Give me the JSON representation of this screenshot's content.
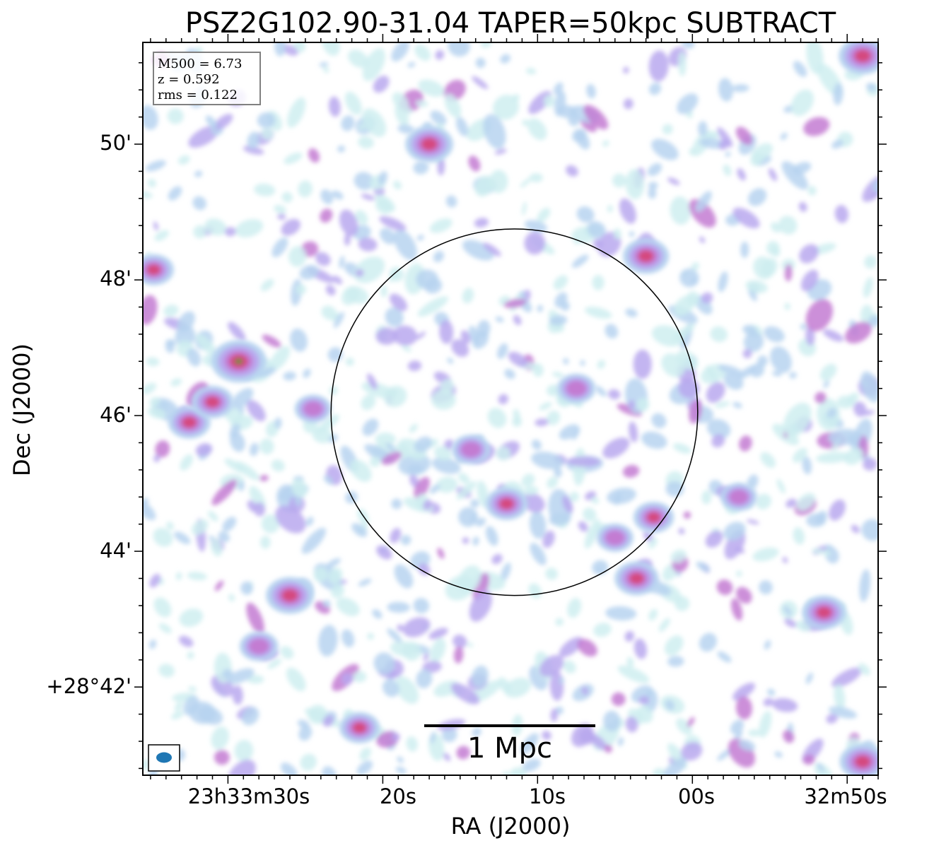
{
  "chart_data": {
    "type": "heatmap",
    "title": "PSZ2G102.90-31.04 TAPER=50kpc SUBTRACT",
    "xlabel": "RA (J2000)",
    "ylabel": "Dec (J2000)",
    "x_ticks": [
      {
        "label": "23h33m30s",
        "ra_s": 30
      },
      {
        "label": "20s",
        "ra_s": 20
      },
      {
        "label": "10s",
        "ra_s": 10
      },
      {
        "label": "00s",
        "ra_s": 0
      },
      {
        "label": "32m50s",
        "ra_s": -10
      }
    ],
    "y_ticks": [
      {
        "label": "50'",
        "dec_arcmin": 50
      },
      {
        "label": "48'",
        "dec_arcmin": 48
      },
      {
        "label": "46'",
        "dec_arcmin": 46
      },
      {
        "label": "44'",
        "dec_arcmin": 44
      },
      {
        "label": "+28°42'",
        "dec_arcmin": 42
      }
    ],
    "xlim_ra_s": [
      35.5,
      -12.0
    ],
    "ylim_dec_arcmin": [
      40.7,
      51.5
    ],
    "grid": false,
    "info_box": {
      "lines": [
        "M500 = 6.73",
        "z = 0.592",
        "rms = 0.122"
      ],
      "placement": "top-left"
    },
    "circle": {
      "ra_s": 11.5,
      "dec_arcmin": 46.05,
      "radius_arcmin": 2.7
    },
    "scalebar": {
      "label": "1 Mpc",
      "placement": "bottom-center"
    },
    "beam": {
      "placement": "bottom-left",
      "color": "#1f77b4"
    },
    "colormap": [
      "#cfeef0",
      "#b7d3f0",
      "#b9a8ee",
      "#c37bd2",
      "#d4487f",
      "#6b8a3a"
    ],
    "emission_peaks": [
      {
        "ra_s": 29.3,
        "dec_arcmin": 46.8,
        "level": 1.0
      },
      {
        "ra_s": 17.0,
        "dec_arcmin": 50.0,
        "level": 0.8
      },
      {
        "ra_s": 26.0,
        "dec_arcmin": 43.35,
        "level": 0.8
      },
      {
        "ra_s": -11.0,
        "dec_arcmin": 51.3,
        "level": 0.8
      },
      {
        "ra_s": -11.0,
        "dec_arcmin": 40.9,
        "level": 0.75
      },
      {
        "ra_s": 3.0,
        "dec_arcmin": 48.35,
        "level": 0.75
      },
      {
        "ra_s": 3.6,
        "dec_arcmin": 43.6,
        "level": 0.7
      },
      {
        "ra_s": -8.5,
        "dec_arcmin": 43.1,
        "level": 0.7
      },
      {
        "ra_s": 12.0,
        "dec_arcmin": 44.7,
        "level": 0.65
      },
      {
        "ra_s": 32.5,
        "dec_arcmin": 45.9,
        "level": 0.65
      },
      {
        "ra_s": 31.0,
        "dec_arcmin": 46.2,
        "level": 0.65
      },
      {
        "ra_s": 34.8,
        "dec_arcmin": 48.15,
        "level": 0.6
      },
      {
        "ra_s": 2.5,
        "dec_arcmin": 44.5,
        "level": 0.6
      },
      {
        "ra_s": 21.5,
        "dec_arcmin": 41.4,
        "level": 0.6
      },
      {
        "ra_s": 28.0,
        "dec_arcmin": 42.6,
        "level": 0.55
      },
      {
        "ra_s": 14.3,
        "dec_arcmin": 45.5,
        "level": 0.55
      },
      {
        "ra_s": 7.5,
        "dec_arcmin": 46.4,
        "level": 0.55
      },
      {
        "ra_s": 24.5,
        "dec_arcmin": 46.1,
        "level": 0.5
      },
      {
        "ra_s": 5.0,
        "dec_arcmin": 44.2,
        "level": 0.5
      },
      {
        "ra_s": -3.0,
        "dec_arcmin": 44.8,
        "level": 0.5
      }
    ]
  }
}
